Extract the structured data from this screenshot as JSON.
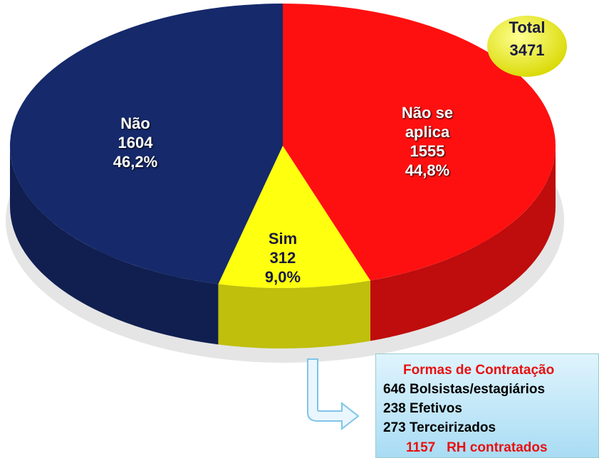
{
  "chart_data": {
    "type": "pie",
    "categories": [
      "Não se aplica",
      "Sim",
      "Não"
    ],
    "values": [
      1555,
      312,
      1604
    ],
    "percents": [
      44.8,
      9.0,
      46.2
    ],
    "percent_labels": [
      "44,8%",
      "9,0%",
      "46,2%"
    ],
    "colors": [
      "#ff1010",
      "#ffff10",
      "#15296b"
    ],
    "total": {
      "label": "Total",
      "value": 3471
    },
    "box": {
      "title": "Formas de Contratação",
      "items": [
        {
          "value": 646,
          "label": "Bolsistas/estagiários"
        },
        {
          "value": 238,
          "label": "Efetivos"
        },
        {
          "value": 273,
          "label": "Terceirizados"
        }
      ],
      "total": {
        "value": 1157,
        "label": "RH contratados"
      }
    }
  }
}
